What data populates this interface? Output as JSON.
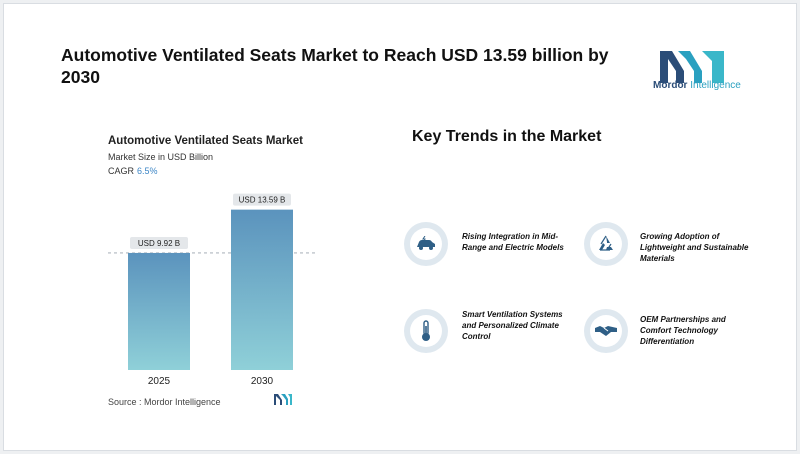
{
  "header": {
    "title": "Automotive Ventilated Seats Market to Reach USD 13.59 billion by 2030"
  },
  "logo": {
    "brand": "Mordor",
    "sub": "Intelligence"
  },
  "chart": {
    "title": "Automotive Ventilated Seats Market",
    "subtitle": "Market Size in USD Billion",
    "cagr_label": "CAGR",
    "cagr_value": "6.5%"
  },
  "chart_data": {
    "type": "bar",
    "title": "Automotive Ventilated Seats Market",
    "ylabel": "Market Size in USD Billion",
    "categories": [
      "2025",
      "2030"
    ],
    "values": [
      9.92,
      13.59
    ],
    "data_labels": [
      "USD 9.92 B",
      "USD 13.59 B"
    ],
    "bar_color_top": "#5b93bd",
    "bar_color_bottom": "#8fd0d8",
    "reference_line_value": 9.92
  },
  "source": "Source :  Mordor Intelligence",
  "trends": {
    "title": "Key Trends in the Market",
    "items": [
      {
        "label": "Rising Integration in Mid-Range and Electric Models",
        "icon": "electric-car-icon"
      },
      {
        "label": "Growing Adoption of Lightweight and Sustainable Materials",
        "icon": "recycle-icon"
      },
      {
        "label": "Smart Ventilation Systems and Personalized Climate Control",
        "icon": "thermometer-icon"
      },
      {
        "label": "OEM Partnerships and Comfort Technology Differentiation",
        "icon": "handshake-icon"
      }
    ]
  },
  "colors": {
    "accent_teal": "#2aa0c0",
    "accent_navy": "#2b4d78",
    "icon_color": "#2f5f86"
  }
}
